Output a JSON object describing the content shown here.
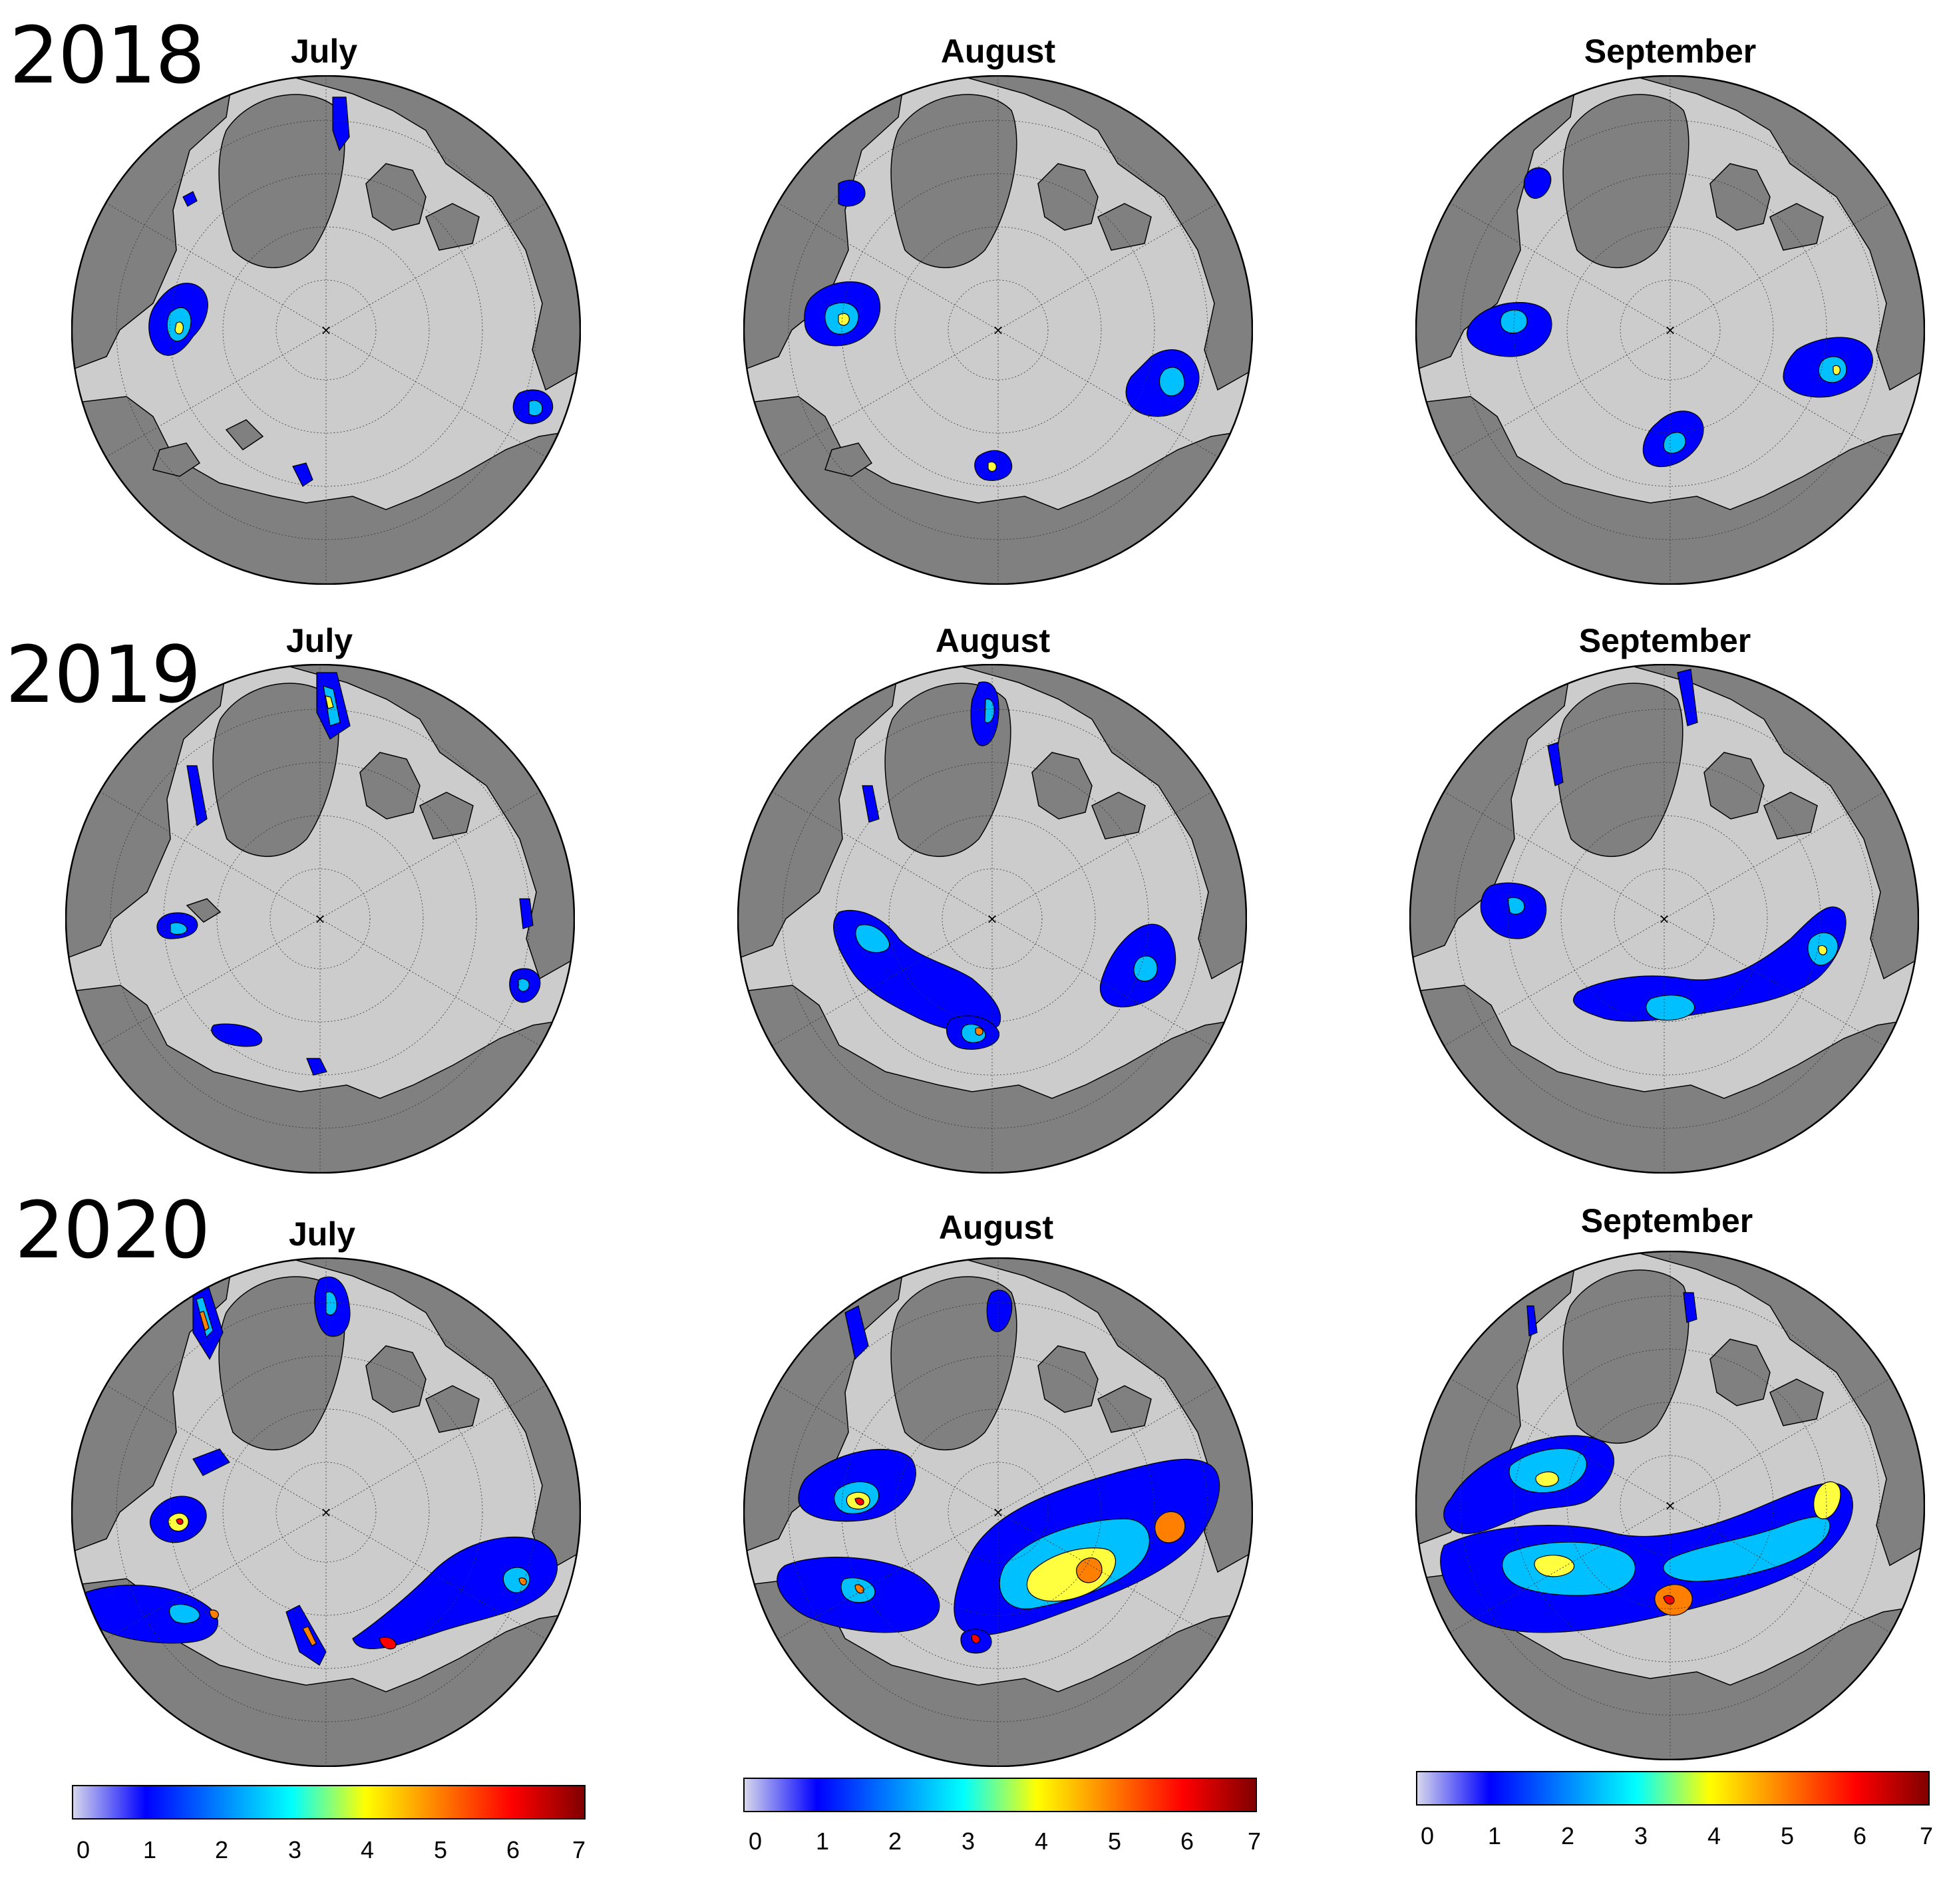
{
  "rows": [
    {
      "year": "2018",
      "months": [
        "July",
        "August",
        "September"
      ]
    },
    {
      "year": "2019",
      "months": [
        "July",
        "August",
        "September"
      ]
    },
    {
      "year": "2020",
      "months": [
        "July",
        "August",
        "September"
      ]
    }
  ],
  "colorbar": {
    "ticks": [
      "0",
      "1",
      "2",
      "3",
      "4",
      "5",
      "6",
      "7"
    ],
    "range": [
      0,
      7
    ],
    "colormap": [
      "#d8d8ec",
      "#0000ff",
      "#0080ff",
      "#00ffff",
      "#ffff00",
      "#ff8000",
      "#ff0000",
      "#800000"
    ]
  },
  "colors": {
    "ocean": "#cccccc",
    "land": "#808080",
    "outline": "#000000"
  }
}
